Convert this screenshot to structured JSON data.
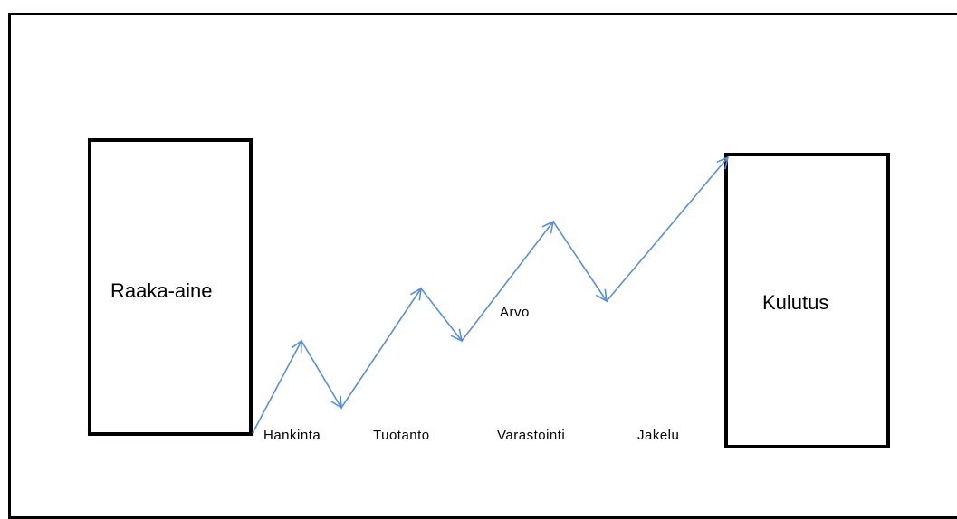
{
  "diagram": {
    "source_label": "Raaka-aine",
    "target_label": "Kulutus",
    "value_label": "Arvo",
    "stages": [
      "Hankinta",
      "Tuotanto",
      "Varastointi",
      "Jakelu"
    ],
    "line_color": "#5b8fd0",
    "border_color": "#000000"
  }
}
